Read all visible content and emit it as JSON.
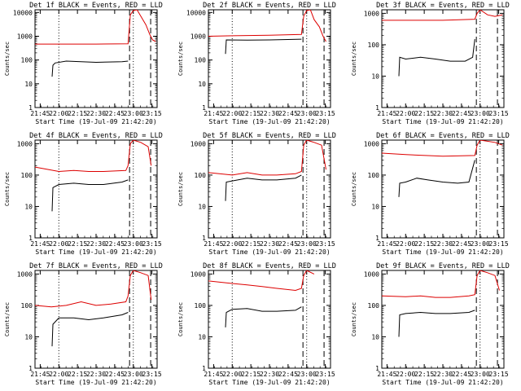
{
  "colors": {
    "events": "#000000",
    "lld": "#dd0000",
    "axis": "#000000"
  },
  "chart_data": [
    {
      "type": "line",
      "title": "Det 1f BLACK = Events, RED = LLD",
      "xlabel": "Start Time (19-Jul-09 21:42:20)",
      "ylabel": "Counts/sec",
      "xlim": [
        21.68,
        23.32
      ],
      "ylim": [
        1,
        13000
      ],
      "yscale": "log",
      "xticks": [
        "21:45",
        "22:00",
        "22:15",
        "22:30",
        "22:45",
        "23:00",
        "23:15"
      ],
      "yticks": [
        "1",
        "10",
        "100",
        "1000",
        "10000"
      ],
      "dotted_lines": [
        "22:00",
        "23:00"
      ],
      "dashed_lines": [
        "22:57",
        "23:14"
      ],
      "series": [
        {
          "name": "Events",
          "color": "events",
          "points": [
            [
              21.91,
              20
            ],
            [
              21.92,
              60
            ],
            [
              21.95,
              75
            ],
            [
              22.1,
              90
            ],
            [
              22.3,
              85
            ],
            [
              22.5,
              80
            ],
            [
              22.85,
              85
            ],
            [
              22.93,
              90
            ]
          ]
        },
        {
          "name": "LLD",
          "color": "lld",
          "points": [
            [
              21.68,
              470
            ],
            [
              22.0,
              470
            ],
            [
              22.5,
              470
            ],
            [
              22.93,
              480
            ],
            [
              22.96,
              8000
            ],
            [
              23.0,
              12000
            ],
            [
              23.05,
              13000
            ],
            [
              23.1,
              7000
            ],
            [
              23.17,
              3000
            ],
            [
              23.22,
              1200
            ],
            [
              23.26,
              700
            ],
            [
              23.3,
              600
            ]
          ]
        }
      ]
    },
    {
      "type": "line",
      "title": "Det 2f BLACK = Events, RED = LLD",
      "xlabel": "Start Time (19-Jul-09 21:42:20)",
      "ylabel": "Counts/sec",
      "xlim": [
        21.68,
        23.32
      ],
      "ylim": [
        1,
        13000
      ],
      "yscale": "log",
      "xticks": [
        "21:45",
        "22:00",
        "22:15",
        "22:30",
        "22:45",
        "23:00",
        "23:15"
      ],
      "yticks": [
        "1",
        "10",
        "100",
        "1000",
        "10000"
      ],
      "dotted_lines": [
        "22:00",
        "23:00"
      ],
      "dashed_lines": [
        "22:57",
        "23:14"
      ],
      "series": [
        {
          "name": "Events",
          "color": "events",
          "points": [
            [
              21.91,
              180
            ],
            [
              21.92,
              700
            ],
            [
              22.2,
              690
            ],
            [
              22.5,
              700
            ],
            [
              22.93,
              750
            ]
          ]
        },
        {
          "name": "LLD",
          "color": "lld",
          "points": [
            [
              21.68,
              1000
            ],
            [
              22.0,
              1050
            ],
            [
              22.5,
              1100
            ],
            [
              22.93,
              1200
            ],
            [
              22.96,
              7000
            ],
            [
              23.0,
              12000
            ],
            [
              23.05,
              13000
            ],
            [
              23.1,
              5000
            ],
            [
              23.17,
              2500
            ],
            [
              23.22,
              1000
            ],
            [
              23.26,
              600
            ]
          ]
        }
      ]
    },
    {
      "type": "line",
      "title": "Det 3f BLACK = Events, RED = LLD",
      "xlabel": "Start Time (19-Jul-09 21:42:20)",
      "ylabel": "Counts/sec",
      "xlim": [
        21.68,
        23.32
      ],
      "ylim": [
        1,
        1300
      ],
      "yscale": "log",
      "xticks": [
        "21:45",
        "22:00",
        "22:15",
        "22:30",
        "22:45",
        "23:00",
        "23:15"
      ],
      "yticks": [
        "1",
        "10",
        "100",
        "1000"
      ],
      "dotted_lines": [
        "23:00"
      ],
      "dashed_lines": [
        "22:57",
        "23:14"
      ],
      "series": [
        {
          "name": "Events",
          "color": "events",
          "points": [
            [
              21.91,
              10
            ],
            [
              21.92,
              40
            ],
            [
              22.0,
              35
            ],
            [
              22.2,
              40
            ],
            [
              22.4,
              35
            ],
            [
              22.6,
              30
            ],
            [
              22.8,
              30
            ],
            [
              22.9,
              40
            ],
            [
              22.93,
              150
            ]
          ]
        },
        {
          "name": "LLD",
          "color": "lld",
          "points": [
            [
              21.68,
              600
            ],
            [
              22.0,
              600
            ],
            [
              22.5,
              600
            ],
            [
              22.93,
              650
            ],
            [
              22.96,
              1000
            ],
            [
              23.0,
              1300
            ],
            [
              23.1,
              900
            ],
            [
              23.2,
              800
            ],
            [
              23.3,
              900
            ]
          ]
        }
      ]
    },
    {
      "type": "line",
      "title": "Det 4f BLACK = Events, RED = LLD",
      "xlabel": "Start Time (19-Jul-09 21:42:20)",
      "ylabel": "Counts/sec",
      "xlim": [
        21.68,
        23.32
      ],
      "ylim": [
        1,
        1300
      ],
      "yscale": "log",
      "xticks": [
        "21:45",
        "22:00",
        "22:15",
        "22:30",
        "22:45",
        "23:00",
        "23:15"
      ],
      "yticks": [
        "1",
        "10",
        "100",
        "1000"
      ],
      "dotted_lines": [
        "22:00",
        "23:00"
      ],
      "dashed_lines": [
        "22:57",
        "23:14"
      ],
      "series": [
        {
          "name": "Events",
          "color": "events",
          "points": [
            [
              21.91,
              7
            ],
            [
              21.92,
              40
            ],
            [
              22.0,
              50
            ],
            [
              22.2,
              55
            ],
            [
              22.4,
              50
            ],
            [
              22.6,
              50
            ],
            [
              22.85,
              60
            ],
            [
              22.93,
              70
            ]
          ]
        },
        {
          "name": "LLD",
          "color": "lld",
          "points": [
            [
              21.68,
              180
            ],
            [
              21.8,
              160
            ],
            [
              22.0,
              130
            ],
            [
              22.2,
              140
            ],
            [
              22.4,
              130
            ],
            [
              22.6,
              130
            ],
            [
              22.9,
              140
            ],
            [
              22.93,
              200
            ],
            [
              22.96,
              1000
            ],
            [
              23.0,
              1300
            ],
            [
              23.1,
              1100
            ],
            [
              23.2,
              800
            ],
            [
              23.24,
              200
            ]
          ]
        }
      ]
    },
    {
      "type": "line",
      "title": "Det 5f BLACK = Events, RED = LLD",
      "xlabel": "Start Time (19-Jul-09 21:42:20)",
      "ylabel": "Counts/sec",
      "xlim": [
        21.68,
        23.32
      ],
      "ylim": [
        1,
        1300
      ],
      "yscale": "log",
      "xticks": [
        "21:45",
        "22:00",
        "22:15",
        "22:30",
        "22:45",
        "23:00",
        "23:15"
      ],
      "yticks": [
        "1",
        "10",
        "100",
        "1000"
      ],
      "dotted_lines": [
        "22:00",
        "23:00"
      ],
      "dashed_lines": [
        "22:57",
        "23:14"
      ],
      "series": [
        {
          "name": "Events",
          "color": "events",
          "points": [
            [
              21.91,
              15
            ],
            [
              21.92,
              60
            ],
            [
              22.0,
              65
            ],
            [
              22.2,
              80
            ],
            [
              22.4,
              70
            ],
            [
              22.6,
              70
            ],
            [
              22.85,
              80
            ],
            [
              22.93,
              100
            ]
          ]
        },
        {
          "name": "LLD",
          "color": "lld",
          "points": [
            [
              21.68,
              120
            ],
            [
              22.0,
              100
            ],
            [
              22.2,
              120
            ],
            [
              22.4,
              100
            ],
            [
              22.6,
              100
            ],
            [
              22.85,
              110
            ],
            [
              22.93,
              130
            ],
            [
              22.96,
              900
            ],
            [
              23.0,
              1300
            ],
            [
              23.1,
              1100
            ],
            [
              23.2,
              900
            ],
            [
              23.26,
              150
            ]
          ]
        }
      ]
    },
    {
      "type": "line",
      "title": "Det 6f BLACK = Events, RED = LLD",
      "xlabel": "Start Time (19-Jul-09 21:42:20)",
      "ylabel": "Counts/sec",
      "xlim": [
        21.68,
        23.32
      ],
      "ylim": [
        1,
        1300
      ],
      "yscale": "log",
      "xticks": [
        "21:45",
        "22:00",
        "22:15",
        "22:30",
        "22:45",
        "23:00",
        "23:15"
      ],
      "yticks": [
        "1",
        "10",
        "100",
        "1000"
      ],
      "dotted_lines": [
        "23:00"
      ],
      "dashed_lines": [
        "22:57",
        "23:14"
      ],
      "series": [
        {
          "name": "Events",
          "color": "events",
          "points": [
            [
              21.91,
              20
            ],
            [
              21.92,
              55
            ],
            [
              22.0,
              60
            ],
            [
              22.15,
              80
            ],
            [
              22.3,
              70
            ],
            [
              22.5,
              60
            ],
            [
              22.7,
              55
            ],
            [
              22.85,
              60
            ],
            [
              22.93,
              300
            ]
          ]
        },
        {
          "name": "LLD",
          "color": "lld",
          "points": [
            [
              21.68,
              500
            ],
            [
              22.0,
              450
            ],
            [
              22.5,
              400
            ],
            [
              22.93,
              420
            ],
            [
              22.96,
              900
            ],
            [
              23.0,
              1300
            ],
            [
              23.2,
              1100
            ],
            [
              23.3,
              900
            ]
          ]
        }
      ]
    },
    {
      "type": "line",
      "title": "Det 7f BLACK = Events, RED = LLD",
      "xlabel": "Start Time (19-Jul-09 21:42:20)",
      "ylabel": "Counts/sec",
      "xlim": [
        21.68,
        23.32
      ],
      "ylim": [
        1,
        1300
      ],
      "yscale": "log",
      "xticks": [
        "21:45",
        "22:00",
        "22:15",
        "22:30",
        "22:45",
        "23:00",
        "23:15"
      ],
      "yticks": [
        "1",
        "10",
        "100",
        "1000"
      ],
      "dotted_lines": [
        "22:00",
        "23:00"
      ],
      "dashed_lines": [
        "22:57",
        "23:14"
      ],
      "series": [
        {
          "name": "Events",
          "color": "events",
          "points": [
            [
              21.91,
              5
            ],
            [
              21.92,
              25
            ],
            [
              22.0,
              40
            ],
            [
              22.2,
              40
            ],
            [
              22.4,
              35
            ],
            [
              22.6,
              40
            ],
            [
              22.85,
              50
            ],
            [
              22.93,
              60
            ]
          ]
        },
        {
          "name": "LLD",
          "color": "lld",
          "points": [
            [
              21.68,
              100
            ],
            [
              21.9,
              90
            ],
            [
              22.1,
              100
            ],
            [
              22.3,
              130
            ],
            [
              22.5,
              100
            ],
            [
              22.7,
              110
            ],
            [
              22.9,
              130
            ],
            [
              22.93,
              200
            ],
            [
              22.96,
              900
            ],
            [
              23.0,
              1300
            ],
            [
              23.1,
              1100
            ],
            [
              23.2,
              900
            ],
            [
              23.24,
              150
            ]
          ]
        }
      ]
    },
    {
      "type": "line",
      "title": "Det 8f BLACK = Events, RED = LLD",
      "xlabel": "Start Time (19-Jul-09 21:42:20)",
      "ylabel": "Counts/sec",
      "xlim": [
        21.68,
        23.32
      ],
      "ylim": [
        1,
        1300
      ],
      "yscale": "log",
      "xticks": [
        "21:45",
        "22:00",
        "22:15",
        "22:30",
        "22:45",
        "23:00",
        "23:15"
      ],
      "yticks": [
        "1",
        "10",
        "100",
        "1000"
      ],
      "dotted_lines": [
        "22:00",
        "23:00"
      ],
      "dashed_lines": [
        "22:57",
        "23:14"
      ],
      "series": [
        {
          "name": "Events",
          "color": "events",
          "points": [
            [
              21.91,
              20
            ],
            [
              21.92,
              60
            ],
            [
              22.0,
              75
            ],
            [
              22.2,
              80
            ],
            [
              22.4,
              65
            ],
            [
              22.6,
              65
            ],
            [
              22.85,
              70
            ],
            [
              22.93,
              90
            ]
          ]
        },
        {
          "name": "LLD",
          "color": "lld",
          "points": [
            [
              21.68,
              600
            ],
            [
              22.0,
              500
            ],
            [
              22.2,
              450
            ],
            [
              22.4,
              400
            ],
            [
              22.6,
              350
            ],
            [
              22.85,
              300
            ],
            [
              22.93,
              350
            ],
            [
              22.96,
              900
            ],
            [
              23.0,
              1300
            ],
            [
              23.1,
              1000
            ]
          ]
        }
      ]
    },
    {
      "type": "line",
      "title": "Det 9f BLACK = Events, RED = LLD",
      "xlabel": "Start Time (19-Jul-09 21:42:20)",
      "ylabel": "Counts/sec",
      "xlim": [
        21.68,
        23.32
      ],
      "ylim": [
        1,
        1300
      ],
      "yscale": "log",
      "xticks": [
        "21:45",
        "22:00",
        "22:15",
        "22:30",
        "22:45",
        "23:00",
        "23:15"
      ],
      "yticks": [
        "1",
        "10",
        "100",
        "1000"
      ],
      "dotted_lines": [
        "23:00"
      ],
      "dashed_lines": [
        "22:57",
        "23:14"
      ],
      "series": [
        {
          "name": "Events",
          "color": "events",
          "points": [
            [
              21.91,
              10
            ],
            [
              21.92,
              50
            ],
            [
              22.0,
              55
            ],
            [
              22.2,
              60
            ],
            [
              22.4,
              55
            ],
            [
              22.6,
              55
            ],
            [
              22.85,
              60
            ],
            [
              22.93,
              70
            ]
          ]
        },
        {
          "name": "LLD",
          "color": "lld",
          "points": [
            [
              21.68,
              200
            ],
            [
              22.0,
              190
            ],
            [
              22.2,
              200
            ],
            [
              22.4,
              180
            ],
            [
              22.6,
              180
            ],
            [
              22.85,
              200
            ],
            [
              22.93,
              220
            ],
            [
              22.96,
              900
            ],
            [
              23.0,
              1300
            ],
            [
              23.1,
              1100
            ],
            [
              23.2,
              900
            ],
            [
              23.26,
              300
            ]
          ]
        }
      ]
    }
  ]
}
